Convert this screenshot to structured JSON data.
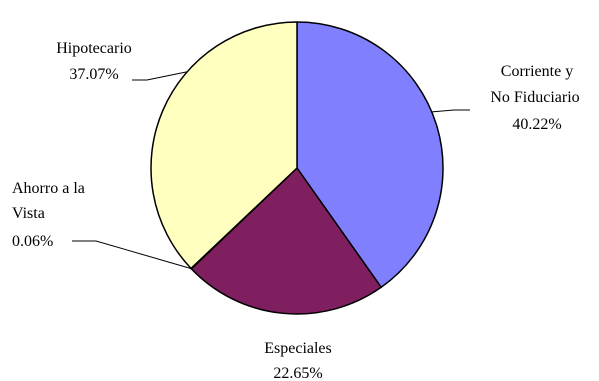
{
  "chart_data": {
    "type": "pie",
    "title": "",
    "start_angle_deg": 0,
    "direction": "clockwise",
    "slices": [
      {
        "label_lines": [
          "Corriente y",
          "No Fiduciario"
        ],
        "percent_label": "40.22%",
        "value": 40.22,
        "color": "#8080ff"
      },
      {
        "label_lines": [
          "Especiales"
        ],
        "percent_label": "22.65%",
        "value": 22.65,
        "color": "#7f1f5f"
      },
      {
        "label_lines": [
          "Ahorro a la",
          "Vista"
        ],
        "percent_label": "0.06%",
        "value": 0.06,
        "color": "#ffffc0"
      },
      {
        "label_lines": [
          "Hipotecario"
        ],
        "percent_label": "37.07%",
        "value": 37.07,
        "color": "#ffffc0"
      }
    ]
  }
}
